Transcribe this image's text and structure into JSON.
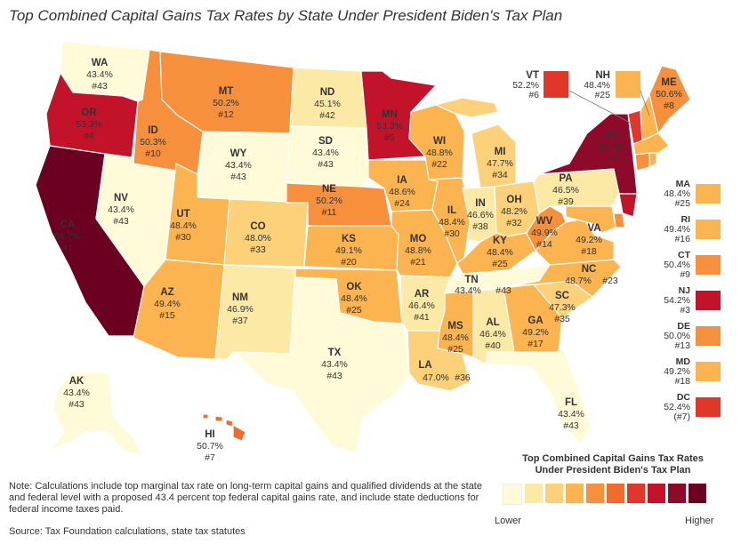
{
  "title": "Top Combined Capital Gains Tax Rates by State Under President Biden's Tax Plan",
  "colors": {
    "c1": "#fffbd9",
    "c2": "#fde9a6",
    "c3": "#fdd07a",
    "c4": "#fbb450",
    "c5": "#f7903d",
    "c6": "#ef6c2b",
    "c7": "#e0372a",
    "c8": "#c2132b",
    "c9": "#8e0a2a",
    "c10": "#6b0021"
  },
  "states": [
    {
      "abbr": "WA",
      "value": "43.4%",
      "rank": "#43",
      "color": "#fffbd9"
    },
    {
      "abbr": "OR",
      "value": "53.3%",
      "rank": "#4",
      "color": "#c2132b"
    },
    {
      "abbr": "CA",
      "value": "56.7%",
      "rank": "#1",
      "color": "#6b0021"
    },
    {
      "abbr": "ID",
      "value": "50.3%",
      "rank": "#10",
      "color": "#f7903d"
    },
    {
      "abbr": "NV",
      "value": "43.4%",
      "rank": "#43",
      "color": "#fffbd9"
    },
    {
      "abbr": "MT",
      "value": "50.2%",
      "rank": "#12",
      "color": "#f7903d"
    },
    {
      "abbr": "WY",
      "value": "43.4%",
      "rank": "#43",
      "color": "#fffbd9"
    },
    {
      "abbr": "UT",
      "value": "48.4%",
      "rank": "#30",
      "color": "#fbb450"
    },
    {
      "abbr": "AZ",
      "value": "49.4%",
      "rank": "#15",
      "color": "#fbb450"
    },
    {
      "abbr": "CO",
      "value": "48.0%",
      "rank": "#33",
      "color": "#fdd07a"
    },
    {
      "abbr": "NM",
      "value": "46.9%",
      "rank": "#37",
      "color": "#fde9a6"
    },
    {
      "abbr": "ND",
      "value": "45.1%",
      "rank": "#42",
      "color": "#fde9a6"
    },
    {
      "abbr": "SD",
      "value": "43.4%",
      "rank": "#43",
      "color": "#fffbd9"
    },
    {
      "abbr": "NE",
      "value": "50.2%",
      "rank": "#11",
      "color": "#f7903d"
    },
    {
      "abbr": "KS",
      "value": "49.1%",
      "rank": "#20",
      "color": "#fbb450"
    },
    {
      "abbr": "OK",
      "value": "48.4%",
      "rank": "#25",
      "color": "#fbb450"
    },
    {
      "abbr": "TX",
      "value": "43.4%",
      "rank": "#43",
      "color": "#fffbd9"
    },
    {
      "abbr": "MN",
      "value": "53.3%",
      "rank": "#5",
      "color": "#c2132b"
    },
    {
      "abbr": "IA",
      "value": "48.6%",
      "rank": "#24",
      "color": "#fbb450"
    },
    {
      "abbr": "MO",
      "value": "48.8%",
      "rank": "#21",
      "color": "#fbb450"
    },
    {
      "abbr": "AR",
      "value": "46.4%",
      "rank": "#41",
      "color": "#fde9a6"
    },
    {
      "abbr": "LA",
      "value": "47.0%",
      "rank": "#36",
      "color": "#fdd07a"
    },
    {
      "abbr": "WI",
      "value": "48.8%",
      "rank": "#22",
      "color": "#fbb450"
    },
    {
      "abbr": "IL",
      "value": "48.4%",
      "rank": "#30",
      "color": "#fbb450"
    },
    {
      "abbr": "MI",
      "value": "47.7%",
      "rank": "#34",
      "color": "#fdd07a"
    },
    {
      "abbr": "IN",
      "value": "46.6%",
      "rank": "#38",
      "color": "#fde9a6"
    },
    {
      "abbr": "OH",
      "value": "48.2%",
      "rank": "#32",
      "color": "#fdd07a"
    },
    {
      "abbr": "KY",
      "value": "48.4%",
      "rank": "#25",
      "color": "#fbb450"
    },
    {
      "abbr": "TN",
      "value": "43.4%",
      "rank": "#43",
      "color": "#fffbd9"
    },
    {
      "abbr": "MS",
      "value": "48.4%",
      "rank": "#25",
      "color": "#fbb450"
    },
    {
      "abbr": "AL",
      "value": "46.4%",
      "rank": "#40",
      "color": "#fde9a6"
    },
    {
      "abbr": "GA",
      "value": "49.2%",
      "rank": "#17",
      "color": "#fbb450"
    },
    {
      "abbr": "FL",
      "value": "43.4%",
      "rank": "#43",
      "color": "#fffbd9"
    },
    {
      "abbr": "SC",
      "value": "47.3%",
      "rank": "#35",
      "color": "#fdd07a"
    },
    {
      "abbr": "NC",
      "value": "48.7%",
      "rank": "#23",
      "color": "#fbb450"
    },
    {
      "abbr": "VA",
      "value": "49.2%",
      "rank": "#18",
      "color": "#fbb450"
    },
    {
      "abbr": "WV",
      "value": "49.9%",
      "rank": "#14",
      "color": "#f7903d"
    },
    {
      "abbr": "PA",
      "value": "46.5%",
      "rank": "#39",
      "color": "#fde9a6"
    },
    {
      "abbr": "NY",
      "value": "54.3%",
      "rank": "#2",
      "color": "#8e0a2a"
    },
    {
      "abbr": "ME",
      "value": "50.6%",
      "rank": "#8",
      "color": "#f7903d"
    },
    {
      "abbr": "AK",
      "value": "43.4%",
      "rank": "#43",
      "color": "#fffbd9"
    },
    {
      "abbr": "HI",
      "value": "50.7%",
      "rank": "#7",
      "color": "#ef6c2b"
    }
  ],
  "callouts_top": [
    {
      "abbr": "VT",
      "value": "52.2%",
      "rank": "#6",
      "color": "#e0372a"
    },
    {
      "abbr": "NH",
      "value": "48.4%",
      "rank": "#25",
      "color": "#fbb450"
    }
  ],
  "side_states": [
    {
      "abbr": "MA",
      "value": "48.4%",
      "rank": "#25",
      "color": "#fbb450"
    },
    {
      "abbr": "RI",
      "value": "49.4%",
      "rank": "#16",
      "color": "#fbb450"
    },
    {
      "abbr": "CT",
      "value": "50.4%",
      "rank": "#9",
      "color": "#f7903d"
    },
    {
      "abbr": "NJ",
      "value": "54.2%",
      "rank": "#3",
      "color": "#c2132b"
    },
    {
      "abbr": "DE",
      "value": "50.0%",
      "rank": "#13",
      "color": "#f7903d"
    },
    {
      "abbr": "MD",
      "value": "49.2%",
      "rank": "#18",
      "color": "#fbb450"
    },
    {
      "abbr": "DC",
      "value": "52.4%",
      "rank": "(#7)",
      "color": "#e0372a"
    }
  ],
  "legend": {
    "title_line1": "Top Combined Capital Gains Tax Rates",
    "title_line2": "Under President Biden's Tax Plan",
    "low": "Lower",
    "high": "Higher",
    "swatches": [
      "#fffbd9",
      "#fde9a6",
      "#fdd07a",
      "#fbb450",
      "#f7903d",
      "#ef6c2b",
      "#e0372a",
      "#c2132b",
      "#8e0a2a",
      "#6b0021"
    ]
  },
  "note": "Note: Calculations include top marginal tax rate on long-term capital gains and qualified dividends at the state and federal level with a proposed 43.4 percent top federal capital gains rate, and include state deductions for federal income taxes paid.",
  "source": "Source: Tax Foundation calculations, state tax statutes"
}
